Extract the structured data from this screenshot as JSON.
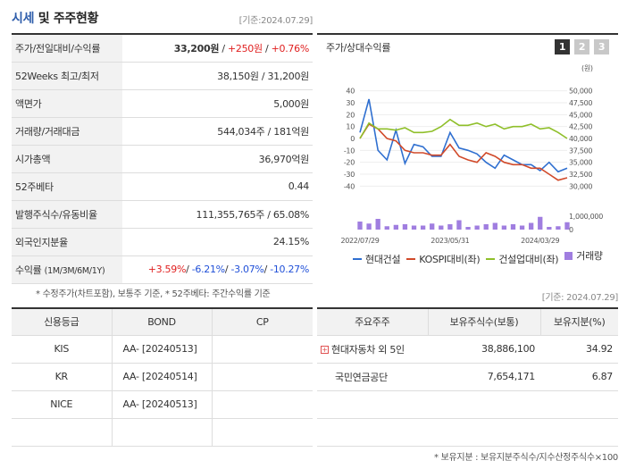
{
  "header": {
    "title_a": "시세",
    "title_b": " 및 주주현황",
    "date": "[기준:2024.07.29]"
  },
  "info_rows": [
    {
      "label": "주가/전일대비/수익률",
      "price": "33,200원",
      "change": "+250원",
      "rate": "+0.76%"
    },
    {
      "label": "52Weeks 최고/최저",
      "value": "38,150원 / 31,200원"
    },
    {
      "label": "액면가",
      "value": "5,000원"
    },
    {
      "label": "거래량/거래대금",
      "value": "544,034주 / 181억원"
    },
    {
      "label": "시가총액",
      "value": "36,970억원"
    },
    {
      "label": "52주베타",
      "value": "0.44"
    },
    {
      "label": "발행주식수/유동비율",
      "value": "111,355,765주 / 65.08%"
    },
    {
      "label": "외국인지분율",
      "value": "24.15%"
    },
    {
      "label": "수익률",
      "label_sub": "(1M/3M/6M/1Y)",
      "r1": "+3.59%",
      "r2": "-6.21%",
      "r3": "-3.07%",
      "r4": "-10.27%"
    }
  ],
  "note1": "* 수정주가(차트포함), 보통주 기준, * 52주베타: 주간수익률 기준",
  "chart_panel": {
    "title": "주가/상대수익률",
    "pages": [
      "1",
      "2",
      "3"
    ]
  },
  "chart_data": {
    "type": "line",
    "x": [
      "2022/07/29",
      "2022/09",
      "2022/10",
      "2022/11",
      "2022/12",
      "2023/01",
      "2023/02",
      "2023/03",
      "2023/04",
      "2023/05",
      "2023/06",
      "2023/07",
      "2023/08",
      "2023/09",
      "2023/10",
      "2023/11",
      "2023/12",
      "2024/01",
      "2024/02",
      "2024/03",
      "2024/04",
      "2024/05",
      "2024/06",
      "2024/07"
    ],
    "x_tick_labels": [
      "2022/07/29",
      "2023/05/31",
      "2024/03/29"
    ],
    "series": [
      {
        "name": "현대건설",
        "axis": "left",
        "color": "#2f6fd0",
        "values": [
          5,
          33,
          -10,
          -18,
          7,
          -21,
          -5,
          -7,
          -15,
          -15,
          5,
          -8,
          -10,
          -13,
          -20,
          -25,
          -14,
          -18,
          -22,
          -22,
          -27,
          -20,
          -28,
          -25
        ]
      },
      {
        "name": "KOSPI대비(좌)",
        "axis": "left",
        "color": "#d14a2a",
        "values": [
          0,
          12,
          8,
          0,
          -2,
          -10,
          -12,
          -12,
          -14,
          -14,
          -5,
          -15,
          -18,
          -20,
          -12,
          -15,
          -20,
          -22,
          -22,
          -25,
          -25,
          -30,
          -35,
          -33
        ]
      },
      {
        "name": "건설업대비(좌)",
        "axis": "left",
        "color": "#8fbf2a",
        "values": [
          0,
          13,
          8,
          8,
          7,
          9,
          5,
          5,
          6,
          10,
          16,
          11,
          11,
          13,
          10,
          12,
          8,
          10,
          10,
          12,
          8,
          9,
          5,
          0
        ]
      },
      {
        "name": "거래량",
        "axis": "volume",
        "color": "#a07ee0",
        "values": [
          600000,
          450000,
          800000,
          250000,
          350000,
          400000,
          300000,
          300000,
          450000,
          300000,
          400000,
          700000,
          200000,
          300000,
          400000,
          500000,
          300000,
          400000,
          300000,
          500000,
          950000,
          200000,
          250000,
          550000
        ]
      }
    ],
    "y_left_ticks": [
      40,
      30,
      20,
      10,
      0,
      -10,
      -20,
      -30,
      -40
    ],
    "y_right_unit": "(원)",
    "y_right_ticks": [
      "50,000",
      "47,500",
      "45,000",
      "42,500",
      "40,000",
      "37,500",
      "35,000",
      "32,500",
      "30,000"
    ],
    "volume_ticks": [
      "1,000,000",
      "0"
    ],
    "ylim_left": [
      -45,
      45
    ],
    "volume_max": 1000000,
    "legend_position": "bottom"
  },
  "date2": "[기준: 2024.07.29]",
  "credit": {
    "headers": [
      "신용등급",
      "BOND",
      "CP"
    ],
    "rows": [
      [
        "KIS",
        "AA-  [20240513]",
        ""
      ],
      [
        "KR",
        "AA-  [20240514]",
        ""
      ],
      [
        "NICE",
        "AA-  [20240513]",
        ""
      ],
      [
        "",
        "",
        ""
      ]
    ]
  },
  "share": {
    "headers": [
      "주요주주",
      "보유주식수(보통)",
      "보유지분(%)"
    ],
    "rows": [
      {
        "name": "현대자동차 외 5인",
        "shares": "38,886,100",
        "pct": "34.92",
        "expand": "+"
      },
      {
        "name": "국민연금공단",
        "shares": "7,654,171",
        "pct": "6.87"
      },
      {
        "name": "",
        "shares": "",
        "pct": ""
      },
      {
        "name": "",
        "shares": "",
        "pct": ""
      }
    ]
  },
  "note2": "* 보유지분 : 보유지분주식수/지수산정주식수×100"
}
